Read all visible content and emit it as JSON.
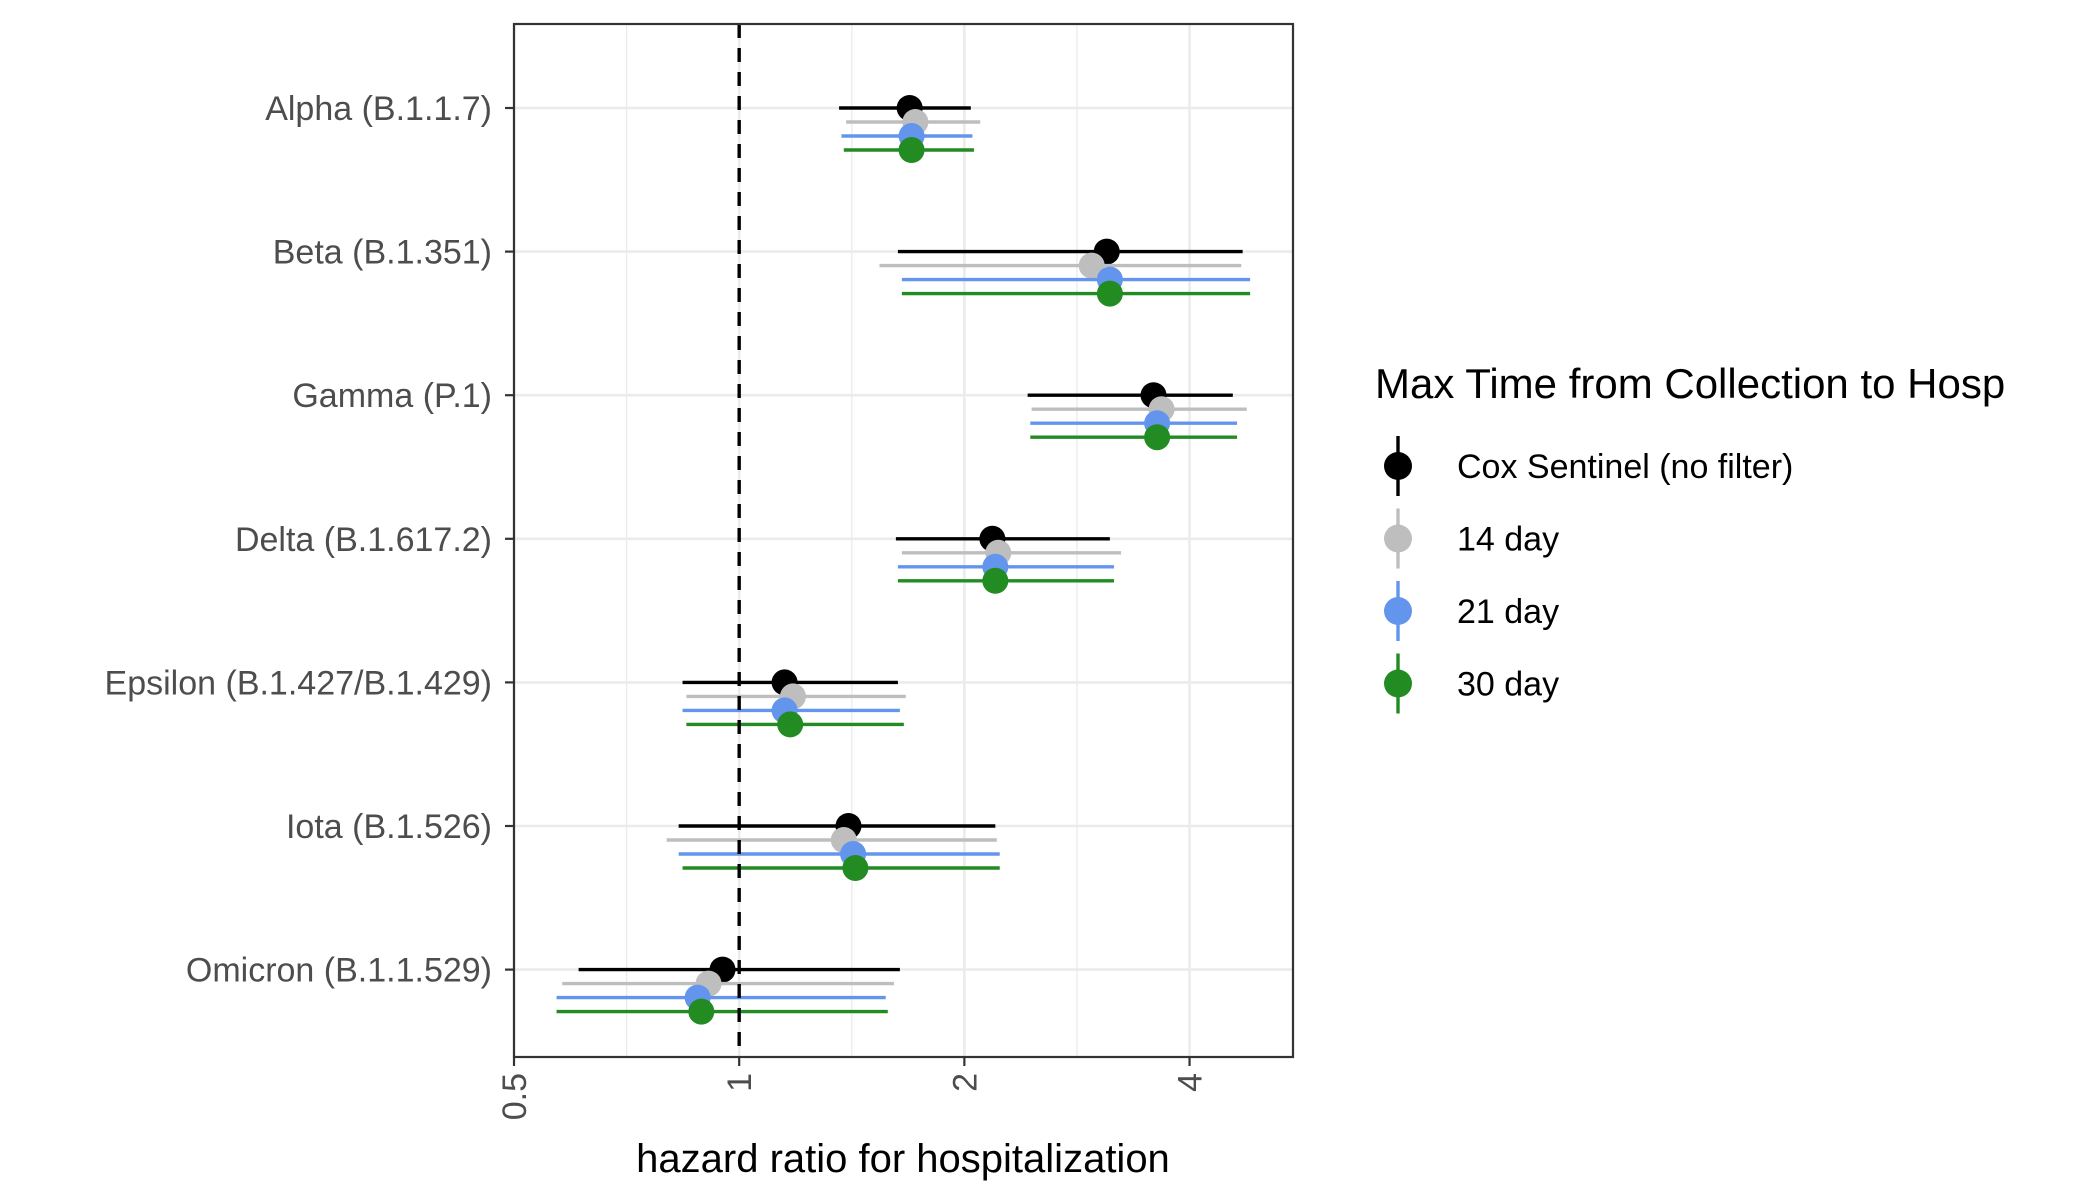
{
  "chart_data": {
    "type": "forest",
    "xlabel": "hazard ratio for hospitalization",
    "x_scale": "log2",
    "xlim": [
      0.5,
      5.5
    ],
    "x_ticks": [
      0.5,
      1,
      2,
      4
    ],
    "x_tick_labels": [
      "0.5",
      "1",
      "2",
      "4"
    ],
    "reference_line": 1,
    "grid": true,
    "categories": [
      "Alpha (B.1.1.7)",
      "Beta (B.1.351)",
      "Gamma (P.1)",
      "Delta (B.1.617.2)",
      "Epsilon (B.1.427/B.1.429)",
      "Iota (B.1.526)",
      "Omicron (B.1.1.529)"
    ],
    "legend": {
      "title": "Max Time from Collection to Hosp",
      "position": "right"
    },
    "series": [
      {
        "name": "Cox Sentinel (no filter)",
        "color": "#000000",
        "estimate": [
          1.69,
          3.1,
          3.58,
          2.18,
          1.15,
          1.4,
          0.95
        ],
        "lower": [
          1.36,
          1.63,
          2.43,
          1.62,
          0.84,
          0.83,
          0.61
        ],
        "upper": [
          2.04,
          4.71,
          4.57,
          3.13,
          1.63,
          2.2,
          1.64
        ]
      },
      {
        "name": "14 day",
        "color": "#bebebe",
        "estimate": [
          1.72,
          2.96,
          3.67,
          2.22,
          1.18,
          1.38,
          0.91
        ],
        "lower": [
          1.39,
          1.54,
          2.46,
          1.65,
          0.85,
          0.8,
          0.58
        ],
        "upper": [
          2.1,
          4.69,
          4.77,
          3.24,
          1.67,
          2.21,
          1.61
        ]
      },
      {
        "name": "21 day",
        "color": "#6495ed",
        "estimate": [
          1.7,
          3.13,
          3.62,
          2.2,
          1.15,
          1.42,
          0.88
        ],
        "lower": [
          1.37,
          1.65,
          2.45,
          1.63,
          0.84,
          0.83,
          0.57
        ],
        "upper": [
          2.05,
          4.82,
          4.63,
          3.17,
          1.64,
          2.23,
          1.57
        ]
      },
      {
        "name": "30 day",
        "color": "#228b22",
        "estimate": [
          1.7,
          3.13,
          3.62,
          2.2,
          1.17,
          1.43,
          0.89
        ],
        "lower": [
          1.38,
          1.65,
          2.45,
          1.63,
          0.85,
          0.84,
          0.57
        ],
        "upper": [
          2.06,
          4.82,
          4.63,
          3.17,
          1.66,
          2.23,
          1.58
        ]
      }
    ]
  }
}
